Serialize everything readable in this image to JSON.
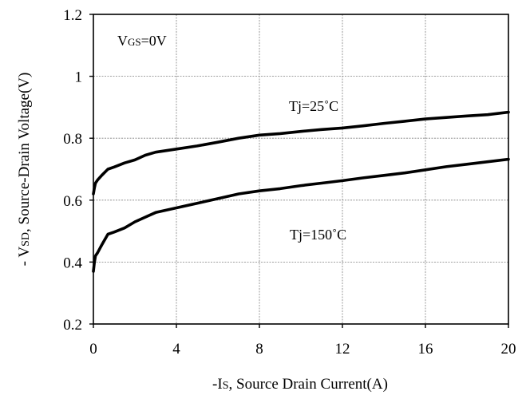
{
  "chart_data": {
    "type": "line",
    "xlabel": {
      "prefix": "-I",
      "sub": "S",
      "suffix": ", Source Drain Current(A)"
    },
    "ylabel": {
      "prefix": "- V",
      "sub": "SD",
      "suffix": ", Source-Drain Voltage(V)"
    },
    "xlim": [
      0,
      20
    ],
    "ylim": [
      0.2,
      1.2
    ],
    "xticks": [
      0,
      4,
      8,
      12,
      16,
      20
    ],
    "yticks": [
      0.2,
      0.4,
      0.6,
      0.8,
      1,
      1.2
    ],
    "xtick_labels": [
      "0",
      "4",
      "8",
      "12",
      "16",
      "20"
    ],
    "ytick_labels": [
      "0.2",
      "0.4",
      "0.6",
      "0.8",
      "1",
      "1.2"
    ],
    "grid": true,
    "condition": {
      "prefix": "V",
      "sub": "GS",
      "suffix": "=0V"
    },
    "series": [
      {
        "name": "Tj=25˚C",
        "color": "#000000",
        "x": [
          0.0,
          0.05,
          0.1,
          0.2,
          0.4,
          0.7,
          1.0,
          1.5,
          2.0,
          2.5,
          3.0,
          4.0,
          5.0,
          6.0,
          7.0,
          8.0,
          9.0,
          10.0,
          11.0,
          12.0,
          13.0,
          14.0,
          15.0,
          16.0,
          17.0,
          18.0,
          19.0,
          20.0
        ],
        "y": [
          0.62,
          0.64,
          0.655,
          0.665,
          0.68,
          0.7,
          0.707,
          0.72,
          0.73,
          0.745,
          0.755,
          0.765,
          0.775,
          0.787,
          0.8,
          0.81,
          0.815,
          0.822,
          0.828,
          0.833,
          0.84,
          0.848,
          0.855,
          0.862,
          0.867,
          0.872,
          0.876,
          0.884
        ]
      },
      {
        "name": "Tj=150˚C",
        "color": "#000000",
        "x": [
          0.0,
          0.05,
          0.1,
          0.2,
          0.4,
          0.7,
          1.0,
          1.5,
          2.0,
          2.5,
          3.0,
          4.0,
          5.0,
          6.0,
          7.0,
          8.0,
          9.0,
          10.0,
          11.0,
          12.0,
          13.0,
          14.0,
          15.0,
          16.0,
          17.0,
          18.0,
          19.0,
          20.0
        ],
        "y": [
          0.37,
          0.4,
          0.42,
          0.43,
          0.455,
          0.49,
          0.497,
          0.51,
          0.53,
          0.545,
          0.56,
          0.575,
          0.59,
          0.605,
          0.62,
          0.63,
          0.637,
          0.647,
          0.655,
          0.663,
          0.672,
          0.68,
          0.688,
          0.698,
          0.708,
          0.716,
          0.724,
          0.732
        ]
      }
    ]
  }
}
